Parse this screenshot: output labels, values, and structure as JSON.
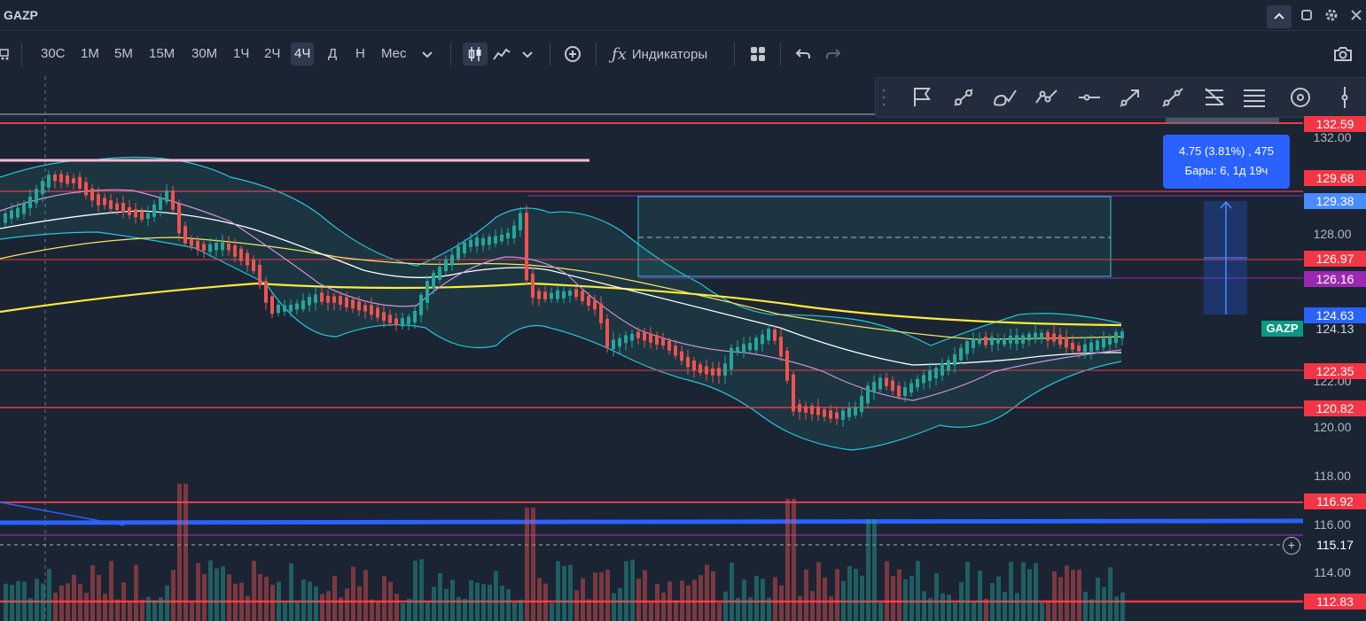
{
  "window": {
    "title": "GAZP"
  },
  "toolbar": {
    "timeframes": [
      "30С",
      "1М",
      "5М",
      "15М",
      "30М",
      "1Ч",
      "2Ч",
      "4Ч",
      "Д",
      "Н",
      "Мес"
    ],
    "active_timeframe": "4Ч",
    "indicators_label": "Индикаторы"
  },
  "price_axis": {
    "labels": [
      "132.00",
      "128.00",
      "122.00",
      "120.00",
      "118.00",
      "116.00",
      "114.00"
    ],
    "tags": [
      {
        "value": "132.59",
        "color": "#f23645"
      },
      {
        "value": "129.68",
        "color": "#f23645"
      },
      {
        "value": "129.38",
        "color": "#4a8cff"
      },
      {
        "value": "126.97",
        "color": "#f23645"
      },
      {
        "value": "126.16",
        "color": "#9c27b0"
      },
      {
        "value": "124.63",
        "color": "#2962ff"
      },
      {
        "value": "124.13",
        "color": "#1b2433"
      },
      {
        "value": "122.35",
        "color": "#f23645"
      },
      {
        "value": "120.82",
        "color": "#f23645"
      },
      {
        "value": "116.92",
        "color": "#f23645"
      },
      {
        "value": "115.17",
        "color": "#1b2433"
      },
      {
        "value": "112.83",
        "color": "#f23645"
      }
    ]
  },
  "measure": {
    "line1": "4.75 (3.81%) , 475",
    "line2": "Бары: 6, 1д 19ч"
  },
  "symbol_tag": "GAZP",
  "colors": {
    "background": "#1b2433",
    "up": "#26a69a",
    "down": "#ef5350",
    "bollinger": "#26c6da",
    "ma_white": "#ffffff",
    "ma_yellow": "#ffeb3b",
    "ma_violet": "#ce93d8",
    "level_red": "#f23645",
    "level_blue": "#2962ff"
  },
  "icons": [
    "maximize-icon",
    "restore-icon",
    "settings-icon",
    "close-icon",
    "candles-icon",
    "line-chart-icon",
    "chevron-down-icon",
    "add-compare-icon",
    "indicators-icon",
    "layout-icon",
    "undo-icon",
    "redo-icon",
    "camera-icon",
    "flag-icon",
    "trend-line-icon",
    "brush-icon",
    "polyline-icon",
    "horizontal-line-icon",
    "arrow-icon",
    "ray-icon",
    "fib-icon",
    "parallel-channel-icon",
    "circle-icon",
    "vertical-line-icon"
  ]
}
